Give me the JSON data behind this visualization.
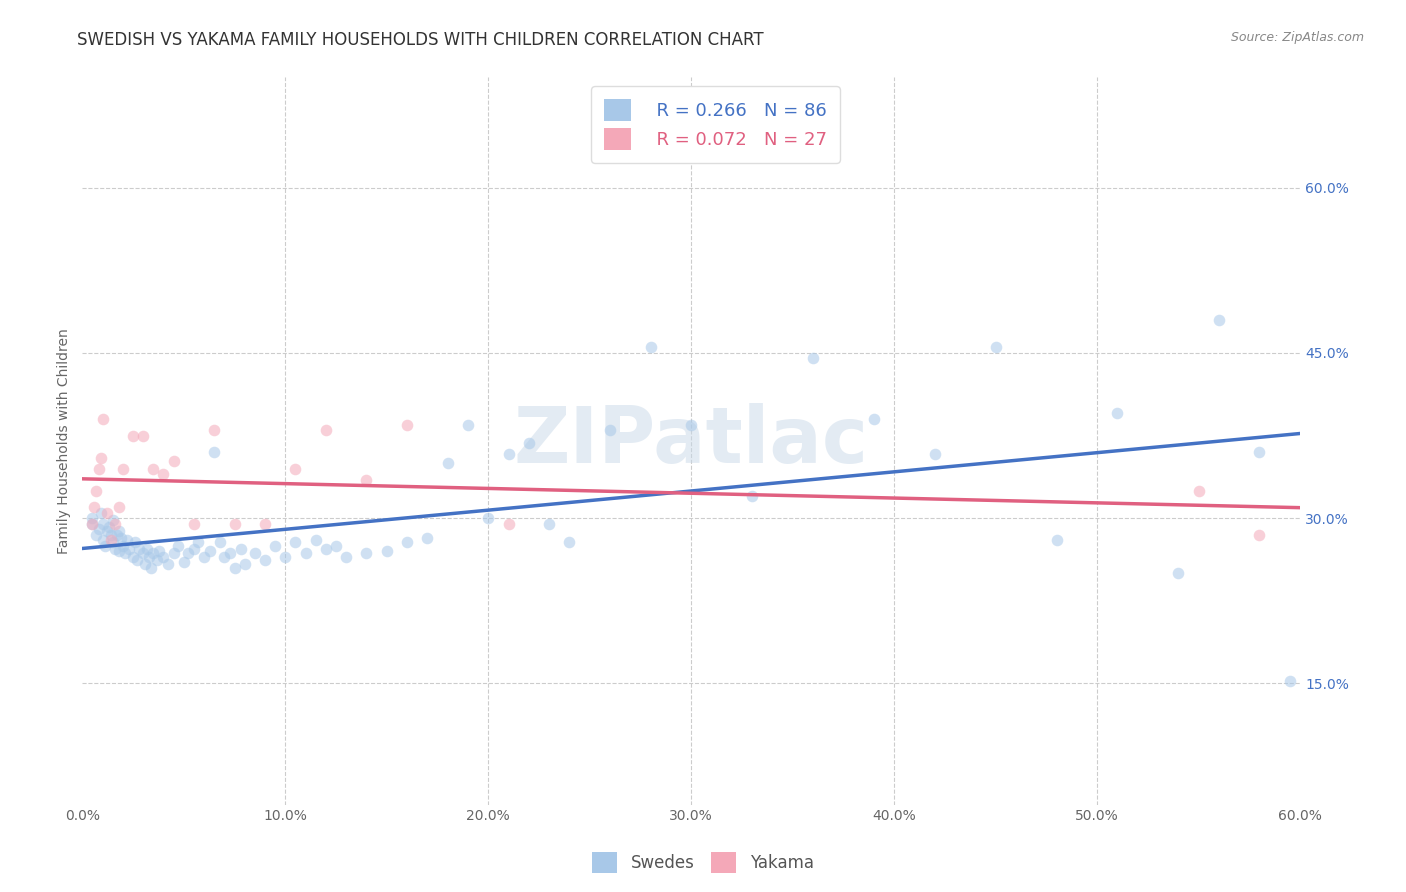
{
  "title": "SWEDISH VS YAKAMA FAMILY HOUSEHOLDS WITH CHILDREN CORRELATION CHART",
  "source": "Source: ZipAtlas.com",
  "ylabel": "Family Households with Children",
  "xlabel_ticks": [
    "0.0%",
    "10.0%",
    "20.0%",
    "30.0%",
    "40.0%",
    "50.0%",
    "60.0%"
  ],
  "ylabel_ticks": [
    "15.0%",
    "30.0%",
    "45.0%",
    "60.0%"
  ],
  "xlim": [
    0.0,
    0.6
  ],
  "ylim": [
    0.04,
    0.7
  ],
  "watermark": "ZIPatlас",
  "legend_blue_r": "R = 0.266",
  "legend_blue_n": "N = 86",
  "legend_pink_r": "R = 0.072",
  "legend_pink_n": "N = 27",
  "blue_color": "#a8c8e8",
  "pink_color": "#f4a8b8",
  "blue_line_color": "#4472c4",
  "pink_line_color": "#e06080",
  "swedes_x": [
    0.005,
    0.005,
    0.007,
    0.008,
    0.009,
    0.01,
    0.01,
    0.011,
    0.012,
    0.013,
    0.014,
    0.015,
    0.015,
    0.016,
    0.017,
    0.018,
    0.018,
    0.019,
    0.02,
    0.021,
    0.022,
    0.023,
    0.025,
    0.026,
    0.027,
    0.028,
    0.03,
    0.031,
    0.032,
    0.033,
    0.034,
    0.035,
    0.037,
    0.038,
    0.04,
    0.042,
    0.045,
    0.047,
    0.05,
    0.052,
    0.055,
    0.057,
    0.06,
    0.063,
    0.065,
    0.068,
    0.07,
    0.073,
    0.075,
    0.078,
    0.08,
    0.085,
    0.09,
    0.095,
    0.1,
    0.105,
    0.11,
    0.115,
    0.12,
    0.125,
    0.13,
    0.14,
    0.15,
    0.16,
    0.17,
    0.18,
    0.19,
    0.2,
    0.21,
    0.22,
    0.23,
    0.24,
    0.26,
    0.28,
    0.3,
    0.33,
    0.36,
    0.39,
    0.42,
    0.45,
    0.48,
    0.51,
    0.54,
    0.56,
    0.58,
    0.595
  ],
  "swedes_y": [
    0.295,
    0.3,
    0.285,
    0.29,
    0.305,
    0.28,
    0.295,
    0.275,
    0.288,
    0.292,
    0.285,
    0.278,
    0.298,
    0.272,
    0.285,
    0.27,
    0.288,
    0.282,
    0.275,
    0.268,
    0.28,
    0.272,
    0.265,
    0.278,
    0.262,
    0.272,
    0.268,
    0.258,
    0.272,
    0.265,
    0.255,
    0.268,
    0.262,
    0.27,
    0.265,
    0.258,
    0.268,
    0.275,
    0.26,
    0.268,
    0.272,
    0.278,
    0.265,
    0.27,
    0.36,
    0.278,
    0.265,
    0.268,
    0.255,
    0.272,
    0.258,
    0.268,
    0.262,
    0.275,
    0.265,
    0.278,
    0.268,
    0.28,
    0.272,
    0.275,
    0.265,
    0.268,
    0.27,
    0.278,
    0.282,
    0.35,
    0.385,
    0.3,
    0.358,
    0.368,
    0.295,
    0.278,
    0.38,
    0.455,
    0.385,
    0.32,
    0.445,
    0.39,
    0.358,
    0.455,
    0.28,
    0.395,
    0.25,
    0.48,
    0.36,
    0.152
  ],
  "yakama_x": [
    0.005,
    0.006,
    0.007,
    0.008,
    0.009,
    0.01,
    0.012,
    0.014,
    0.016,
    0.018,
    0.02,
    0.025,
    0.03,
    0.035,
    0.04,
    0.045,
    0.055,
    0.065,
    0.075,
    0.09,
    0.105,
    0.12,
    0.14,
    0.16,
    0.21,
    0.55,
    0.58
  ],
  "yakama_y": [
    0.295,
    0.31,
    0.325,
    0.345,
    0.355,
    0.39,
    0.305,
    0.28,
    0.295,
    0.31,
    0.345,
    0.375,
    0.375,
    0.345,
    0.34,
    0.352,
    0.295,
    0.38,
    0.295,
    0.295,
    0.345,
    0.38,
    0.335,
    0.385,
    0.295,
    0.325,
    0.285
  ],
  "grid_color": "#cccccc",
  "background_color": "#ffffff",
  "title_fontsize": 12,
  "axis_label_fontsize": 10,
  "tick_fontsize": 10,
  "legend_fontsize": 13,
  "marker_size": 70,
  "marker_alpha": 0.55,
  "legend_label_swedes": "Swedes",
  "legend_label_yakama": "Yakama"
}
